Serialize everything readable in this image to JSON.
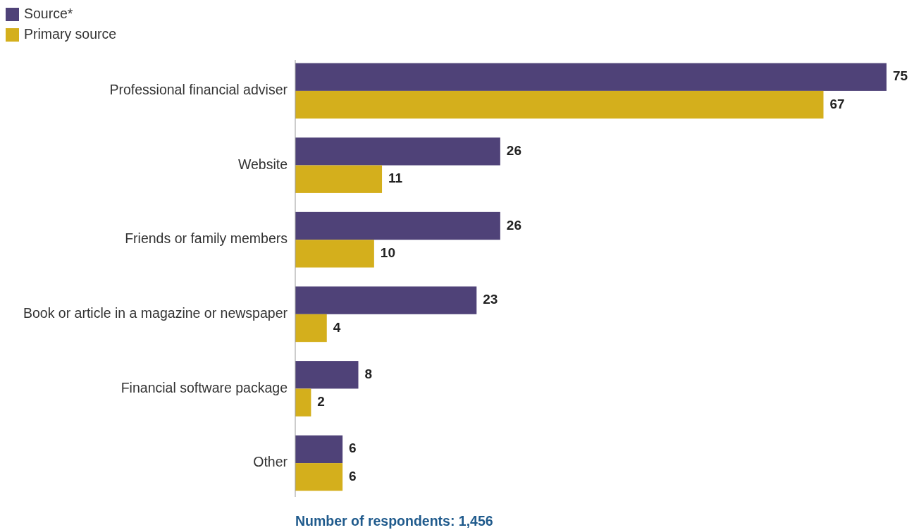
{
  "chart_data": {
    "type": "bar",
    "orientation": "horizontal",
    "categories": [
      "Professional financial adviser",
      "Website",
      "Friends or family members",
      "Book or article in a magazine or newspaper",
      "Financial software package",
      "Other"
    ],
    "series": [
      {
        "name": "Source*",
        "color": "#4f4278",
        "values": [
          75,
          26,
          26,
          23,
          8,
          6
        ]
      },
      {
        "name": "Primary source",
        "color": "#d4af1c",
        "values": [
          67,
          11,
          10,
          4,
          2,
          6
        ]
      }
    ],
    "data_labels": true,
    "legend": "top left",
    "annotations": [
      "Number of respondents: 1,456"
    ]
  }
}
